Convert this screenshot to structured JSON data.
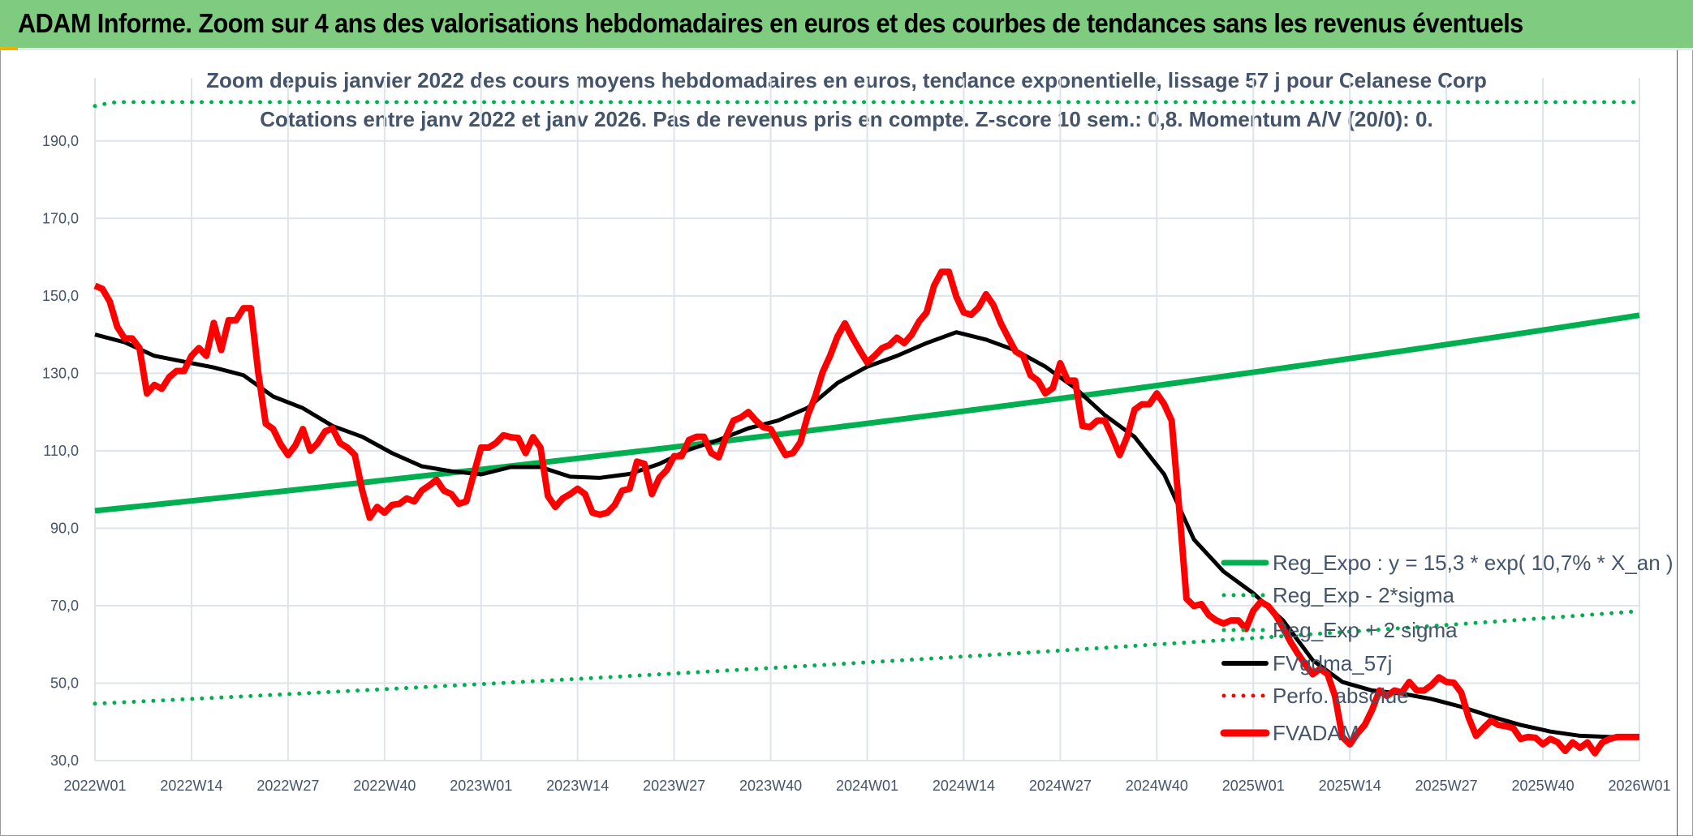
{
  "header": {
    "title": "ADAM Informe. Zoom sur 4 ans des valorisations hebdomadaires en euros et des courbes de tendances sans les revenus éventuels"
  },
  "chart_data": {
    "type": "line",
    "title": "Zoom depuis janvier 2022 des cours moyens hebdomadaires en euros, tendance exponentielle, lissage 57 j pour Celanese Corp",
    "subtitle": "Cotations entre janv 2022 et janv 2026. Pas de revenus pris en compte. Z-score 10 sem.: 0,8. Momentum A/V (20/0): 0.",
    "xlabel": "",
    "ylabel": "",
    "ylim": [
      30,
      200
    ],
    "yticks": [
      "30,0",
      "50,0",
      "70,0",
      "90,0",
      "110,0",
      "130,0",
      "150,0",
      "170,0",
      "190,0"
    ],
    "ytick_values": [
      30,
      50,
      70,
      90,
      110,
      130,
      150,
      170,
      190
    ],
    "xticks": [
      "2022W01",
      "2022W14",
      "2022W27",
      "2022W40",
      "2023W01",
      "2023W14",
      "2023W27",
      "2023W40",
      "2024W01",
      "2024W14",
      "2024W27",
      "2024W40",
      "2025W01",
      "2025W14",
      "2025W27",
      "2025W40",
      "2026W01"
    ],
    "xtick_week_index": [
      0,
      13,
      26,
      39,
      52,
      65,
      78,
      91,
      104,
      117,
      130,
      143,
      156,
      169,
      182,
      195,
      208
    ],
    "n_weeks": 209,
    "grid": true,
    "legend_position": "bottom-right",
    "colors": {
      "reg": "#00b050",
      "fvadam": "#ff0000",
      "gdma": "#000000",
      "grid": "#dfe3ea"
    },
    "regression": {
      "start_value": 94.5,
      "annual_rate": 0.107,
      "lower_start": 44.7,
      "upper_start": 199.0
    },
    "series": [
      {
        "name": "Reg_Expo : y = 15,3 * exp( 10,7% *  X_an )",
        "style": "solid-green"
      },
      {
        "name": "Reg_Exp - 2*sigma",
        "style": "dotted-green"
      },
      {
        "name": "Reg_Exp + 2 sigma",
        "style": "dotted-green"
      },
      {
        "name": "FVgdma_57j",
        "style": "solid-black",
        "step_weeks": 4,
        "values": [
          140,
          138,
          134.5,
          133,
          131.5,
          129.5,
          124,
          121,
          116.4,
          113.6,
          109.4,
          106,
          104.7,
          103.9,
          105.8,
          105.8,
          103.3,
          103,
          104,
          106.6,
          110.3,
          112.8,
          115.8,
          117.8,
          121.1,
          127.5,
          131.7,
          134.5,
          137.8,
          140.6,
          138.7,
          135.9,
          131.7,
          126.2,
          119.2,
          113.6,
          103.9,
          87.1,
          78.8,
          73.2,
          66.2,
          55.9,
          50.3,
          48.1,
          47.3,
          45.9,
          43.9,
          41.4,
          39.2,
          37.5,
          36.4,
          36.1,
          36.1
        ]
      },
      {
        "name": "Perfo. absolue",
        "style": "dotted-red"
      },
      {
        "name": "FVADAM",
        "style": "solid-red",
        "step_weeks": 1,
        "values": [
          152.6,
          151.8,
          148.5,
          142,
          139,
          139,
          136.5,
          124.8,
          127,
          126,
          129,
          130.6,
          130.6,
          134.5,
          136.5,
          134.5,
          143,
          136,
          143.7,
          143.7,
          146.8,
          146.8,
          130,
          117,
          115.6,
          111.7,
          108.9,
          111.4,
          115.6,
          110,
          112,
          115,
          115.8,
          112,
          110.8,
          108.9,
          99.7,
          92.7,
          95.5,
          94,
          96,
          96.3,
          97.7,
          96.9,
          99.7,
          101,
          102.5,
          99.7,
          98.8,
          96.3,
          96.9,
          103.9,
          110.8,
          110.8,
          112,
          114,
          113.5,
          113.3,
          109.4,
          113.5,
          110.8,
          98.3,
          95.5,
          97.7,
          98.8,
          100.2,
          98.8,
          94,
          93.5,
          94,
          96,
          99.7,
          100.2,
          107.2,
          106.6,
          98.8,
          103,
          105,
          108.6,
          108.6,
          112.8,
          113.6,
          113.6,
          109.4,
          108.3,
          113.6,
          117.8,
          118.6,
          120,
          117.8,
          116.1,
          115.6,
          112.2,
          108.9,
          109.4,
          112.2,
          119.2,
          124,
          130.3,
          134.5,
          139.5,
          142.9,
          139.2,
          135.9,
          132.8,
          134.5,
          136.5,
          137.3,
          139.2,
          137.8,
          140,
          143.4,
          145.7,
          152.6,
          156.2,
          156.2,
          149.8,
          145.7,
          145.1,
          147,
          150.4,
          147.6,
          142.9,
          139.2,
          135.6,
          134.5,
          129.5,
          128.1,
          124.8,
          126.2,
          132.6,
          128.1,
          128.1,
          116.4,
          116.1,
          117.8,
          117.8,
          113.6,
          108.9,
          113.6,
          120.6,
          122,
          122,
          124.8,
          122,
          117.8,
          95.5,
          71.8,
          69.9,
          70.4,
          67.6,
          66.2,
          65.4,
          66.2,
          66.2,
          64,
          68.7,
          71,
          69.9,
          67.6,
          64.3,
          60.7,
          57.6,
          54.8,
          52.3,
          53.7,
          52.3,
          46.7,
          36.1,
          34.2,
          37,
          39.2,
          43.1,
          48.1,
          46.7,
          48.1,
          47.6,
          50.3,
          48.1,
          48.1,
          49.5,
          51.5,
          50.3,
          50.1,
          47.6,
          41.1,
          36.4,
          38.4,
          40.3,
          39.2,
          38.9,
          38.4,
          35.6,
          36.1,
          35.9,
          34.2,
          35.6,
          34.7,
          32.5,
          34.7,
          33.3,
          34.7,
          31.9,
          34.7,
          35.6,
          36.1,
          36.1,
          36.1,
          36.1
        ]
      }
    ]
  }
}
